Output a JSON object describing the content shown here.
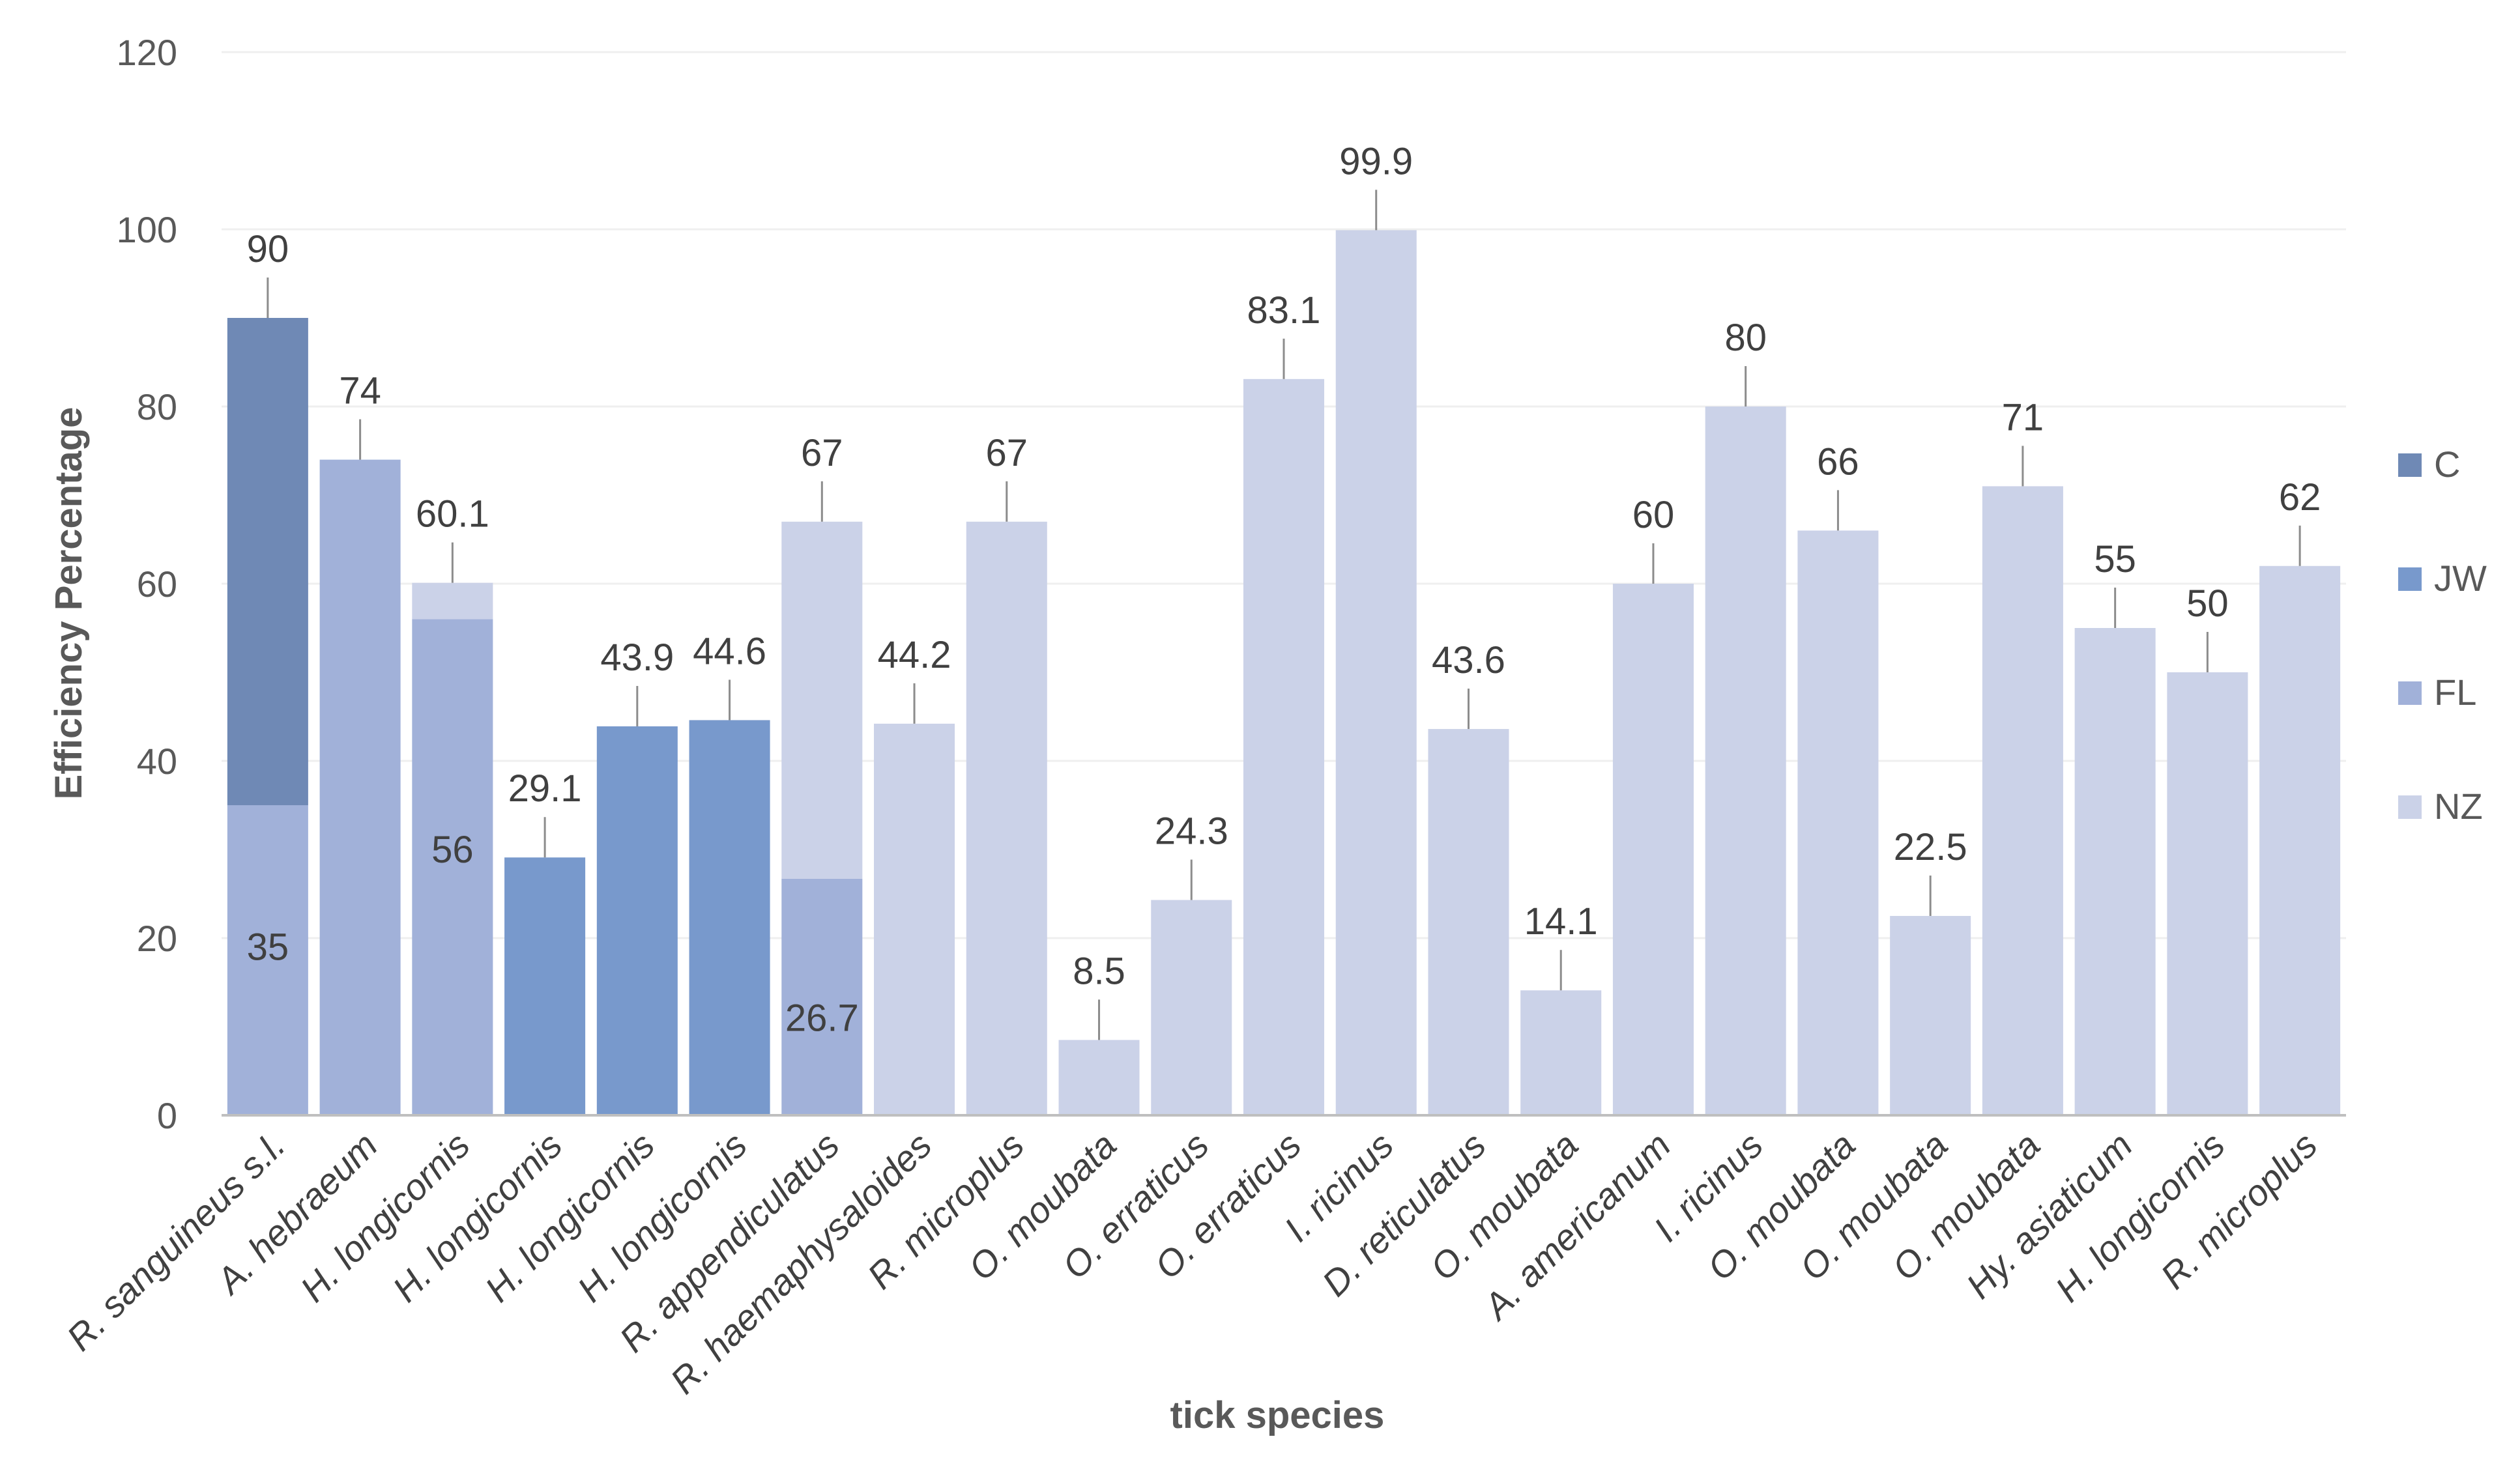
{
  "chart_data": {
    "type": "bar",
    "stacked": true,
    "title": "",
    "xlabel": "tick species",
    "ylabel": "Efficiency Percentage",
    "ylim": [
      0,
      120
    ],
    "yticks": [
      0,
      20,
      40,
      60,
      80,
      100,
      120
    ],
    "grid": true,
    "legend_position": "right",
    "legend": [
      {
        "key": "C",
        "label": "C",
        "color": "#6f89b5"
      },
      {
        "key": "JW",
        "label": "JW",
        "color": "#7899cc"
      },
      {
        "key": "FL",
        "label": "FL",
        "color": "#a1b1d9"
      },
      {
        "key": "NZ",
        "label": "NZ",
        "color": "#cbd2e8"
      }
    ],
    "bars": [
      {
        "category": "R. sanguineus s.l.",
        "segments": [
          {
            "series": "FL",
            "value": 35,
            "label": "35"
          },
          {
            "series": "C",
            "value": 55
          }
        ],
        "total": 90,
        "total_label": "90"
      },
      {
        "category": "A. hebraeum",
        "segments": [
          {
            "series": "FL",
            "value": 74
          }
        ],
        "total": 74,
        "total_label": "74"
      },
      {
        "category": "H. longicornis",
        "segments": [
          {
            "series": "FL",
            "value": 56,
            "label": "56"
          },
          {
            "series": "NZ",
            "value": 4.1
          }
        ],
        "total": 60.1,
        "total_label": "60.1"
      },
      {
        "category": "H. longicornis",
        "segments": [
          {
            "series": "JW",
            "value": 29.1
          }
        ],
        "total": 29.1,
        "total_label": "29.1"
      },
      {
        "category": "H. longicornis",
        "segments": [
          {
            "series": "JW",
            "value": 43.9
          }
        ],
        "total": 43.9,
        "total_label": "43.9"
      },
      {
        "category": "H. longicornis",
        "segments": [
          {
            "series": "JW",
            "value": 44.6
          }
        ],
        "total": 44.6,
        "total_label": "44.6"
      },
      {
        "category": "R. appendiculatus",
        "segments": [
          {
            "series": "FL",
            "value": 26.7,
            "label": "26.7"
          },
          {
            "series": "NZ",
            "value": 40.3
          }
        ],
        "total": 67,
        "total_label": "67"
      },
      {
        "category": "R. haemaphysaloides",
        "segments": [
          {
            "series": "NZ",
            "value": 44.2
          }
        ],
        "total": 44.2,
        "total_label": "44.2"
      },
      {
        "category": "R. microplus",
        "segments": [
          {
            "series": "NZ",
            "value": 67
          }
        ],
        "total": 67,
        "total_label": "67"
      },
      {
        "category": "O. moubata",
        "segments": [
          {
            "series": "NZ",
            "value": 8.5
          }
        ],
        "total": 8.5,
        "total_label": "8.5"
      },
      {
        "category": "O. erraticus",
        "segments": [
          {
            "series": "NZ",
            "value": 24.3
          }
        ],
        "total": 24.3,
        "total_label": "24.3"
      },
      {
        "category": "O. erraticus",
        "segments": [
          {
            "series": "NZ",
            "value": 83.1
          }
        ],
        "total": 83.1,
        "total_label": "83.1"
      },
      {
        "category": "I. ricinus",
        "segments": [
          {
            "series": "NZ",
            "value": 99.9
          }
        ],
        "total": 99.9,
        "total_label": "99.9"
      },
      {
        "category": "D. reticulatus",
        "segments": [
          {
            "series": "NZ",
            "value": 43.6
          }
        ],
        "total": 43.6,
        "total_label": "43.6"
      },
      {
        "category": "O. moubata",
        "segments": [
          {
            "series": "NZ",
            "value": 14.1
          }
        ],
        "total": 14.1,
        "total_label": "14.1"
      },
      {
        "category": "A. americanum",
        "segments": [
          {
            "series": "NZ",
            "value": 60
          }
        ],
        "total": 60,
        "total_label": "60"
      },
      {
        "category": "I. ricinus",
        "segments": [
          {
            "series": "NZ",
            "value": 80
          }
        ],
        "total": 80,
        "total_label": "80"
      },
      {
        "category": "O. moubata",
        "segments": [
          {
            "series": "NZ",
            "value": 66
          }
        ],
        "total": 66,
        "total_label": "66"
      },
      {
        "category": "O. moubata",
        "segments": [
          {
            "series": "NZ",
            "value": 22.5
          }
        ],
        "total": 22.5,
        "total_label": "22.5"
      },
      {
        "category": "O. moubata",
        "segments": [
          {
            "series": "NZ",
            "value": 71
          }
        ],
        "total": 71,
        "total_label": "71"
      },
      {
        "category": "Hy. asiaticum",
        "segments": [
          {
            "series": "NZ",
            "value": 55
          }
        ],
        "total": 55,
        "total_label": "55"
      },
      {
        "category": "H. longicornis",
        "segments": [
          {
            "series": "NZ",
            "value": 50
          }
        ],
        "total": 50,
        "total_label": "50"
      },
      {
        "category": "R. microplus",
        "segments": [
          {
            "series": "NZ",
            "value": 62
          }
        ],
        "total": 62,
        "total_label": "62"
      }
    ]
  }
}
